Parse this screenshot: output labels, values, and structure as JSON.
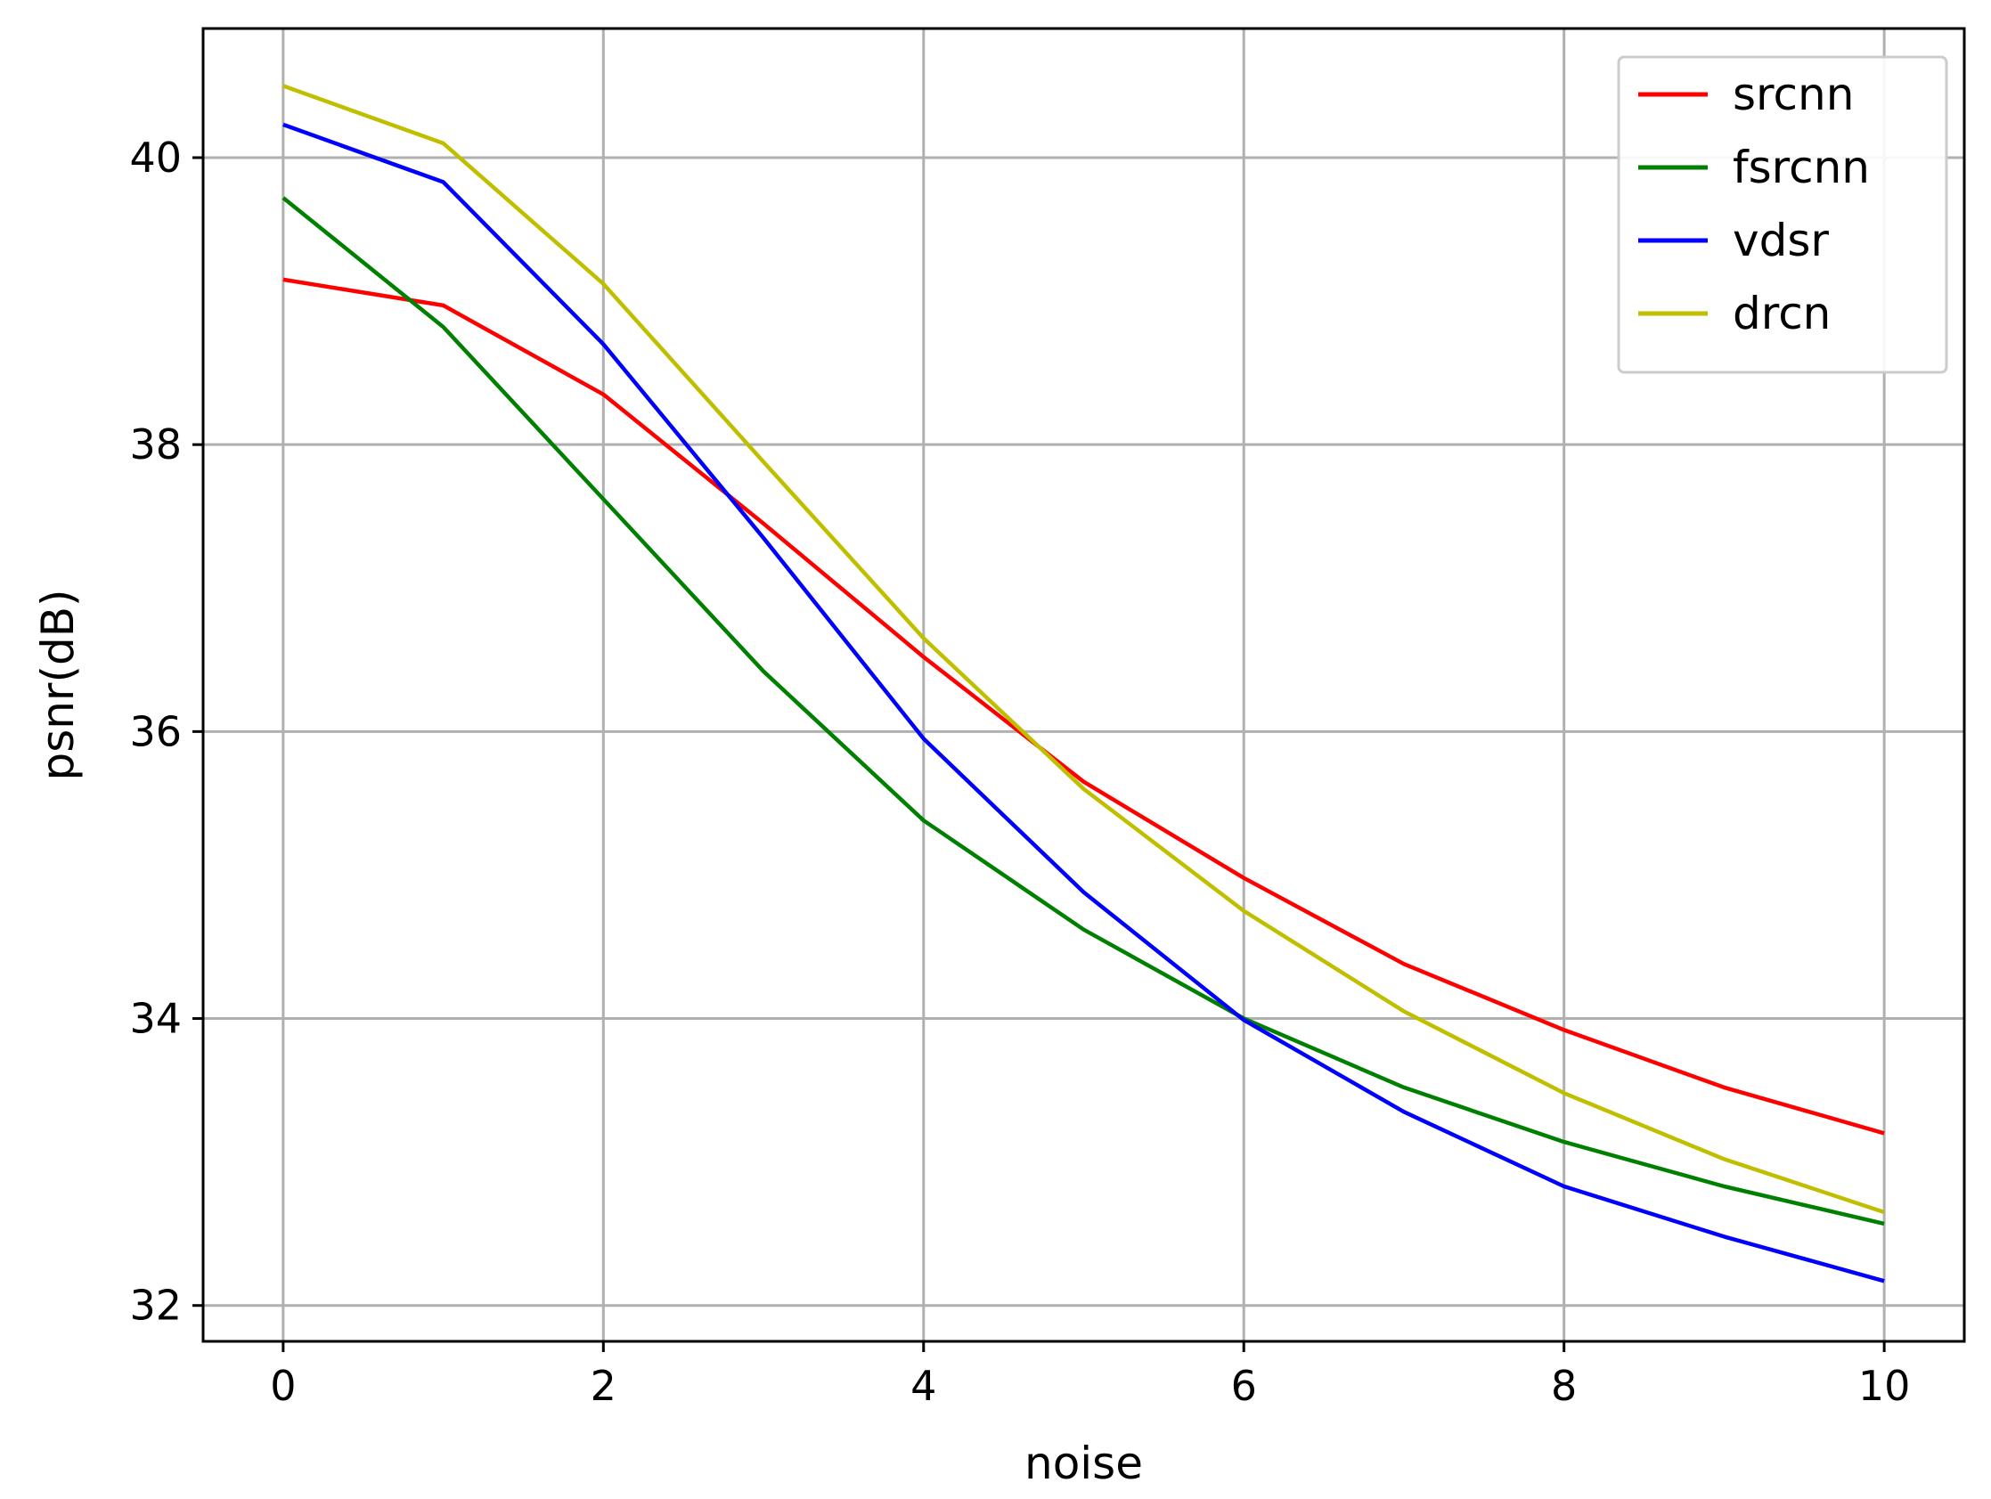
{
  "chart_data": {
    "type": "line",
    "xlabel": "noise",
    "ylabel": "psnr(dB)",
    "xlim": [
      -0.5,
      10.5
    ],
    "ylim": [
      31.75,
      40.9
    ],
    "xticks": [
      0,
      2,
      4,
      6,
      8,
      10
    ],
    "yticks": [
      32,
      34,
      36,
      38,
      40
    ],
    "xtick_labels": [
      "0",
      "2",
      "4",
      "6",
      "8",
      "10"
    ],
    "ytick_labels": [
      "32",
      "34",
      "36",
      "38",
      "40"
    ],
    "grid": true,
    "legend_position": "top-right",
    "x": [
      0,
      1,
      2,
      3,
      4,
      5,
      6,
      7,
      8,
      9,
      10
    ],
    "series": [
      {
        "name": "srcnn",
        "color": "#ff0000",
        "values": [
          39.15,
          38.97,
          38.35,
          37.45,
          36.52,
          35.65,
          34.98,
          34.38,
          33.92,
          33.52,
          33.2
        ]
      },
      {
        "name": "fsrcnn",
        "color": "#008000",
        "values": [
          39.72,
          38.82,
          37.62,
          36.42,
          35.38,
          34.62,
          34.0,
          33.52,
          33.14,
          32.83,
          32.57
        ]
      },
      {
        "name": "vdsr",
        "color": "#0000ff",
        "values": [
          40.23,
          39.83,
          38.7,
          37.35,
          35.95,
          34.88,
          33.99,
          33.35,
          32.83,
          32.48,
          32.17
        ]
      },
      {
        "name": "drcn",
        "color": "#bfbf00",
        "values": [
          40.5,
          40.1,
          39.12,
          37.88,
          36.65,
          35.6,
          34.75,
          34.05,
          33.48,
          33.02,
          32.65
        ]
      }
    ]
  }
}
